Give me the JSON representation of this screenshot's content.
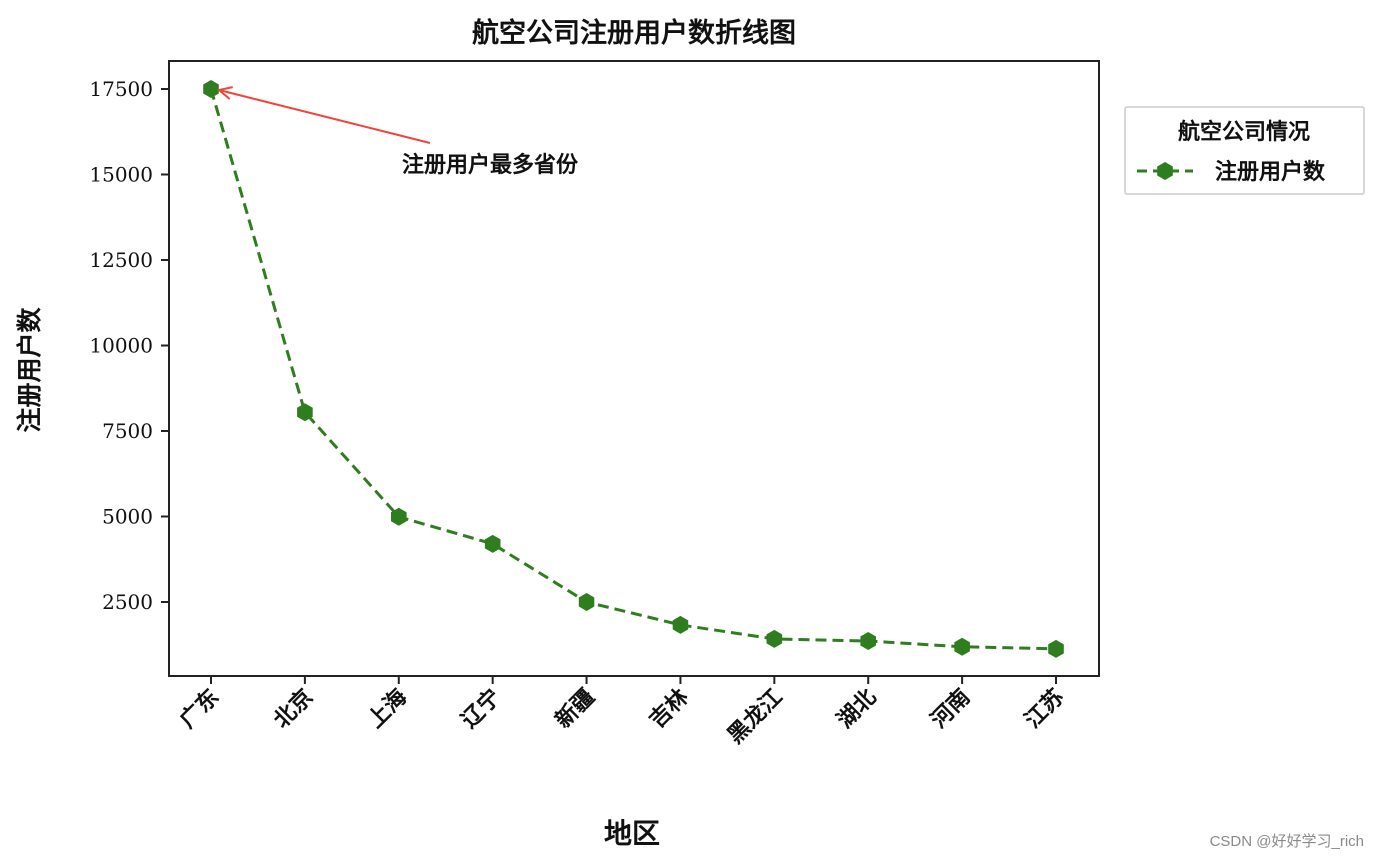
{
  "chart_data": {
    "type": "line",
    "title": "航空公司注册用户数折线图",
    "xlabel": "地区",
    "ylabel": "注册用户数",
    "categories": [
      "广东",
      "北京",
      "上海",
      "辽宁",
      "新疆",
      "吉林",
      "黑龙江",
      "湖北",
      "河南",
      "江苏"
    ],
    "series": [
      {
        "name": "注册用户数",
        "values": [
          17500,
          8050,
          4990,
          4200,
          2500,
          1830,
          1420,
          1360,
          1190,
          1130
        ],
        "color": "#2e7d1e",
        "linestyle": "dashed",
        "marker": "hexagon"
      }
    ],
    "yticks": [
      2500,
      5000,
      7500,
      10000,
      12500,
      15000,
      17500
    ],
    "ylim": [
      350,
      18350
    ],
    "grid": false,
    "legend": {
      "title": "航空公司情况",
      "position": "outside-upper-right",
      "entries": [
        "注册用户数"
      ]
    },
    "annotation": {
      "text": "注册用户最多省份",
      "target_category": "广东",
      "target_value": 17500,
      "arrow_color": "#f0453a"
    },
    "xtick_rotation": 45
  },
  "watermark": "CSDN @好好学习_rich"
}
